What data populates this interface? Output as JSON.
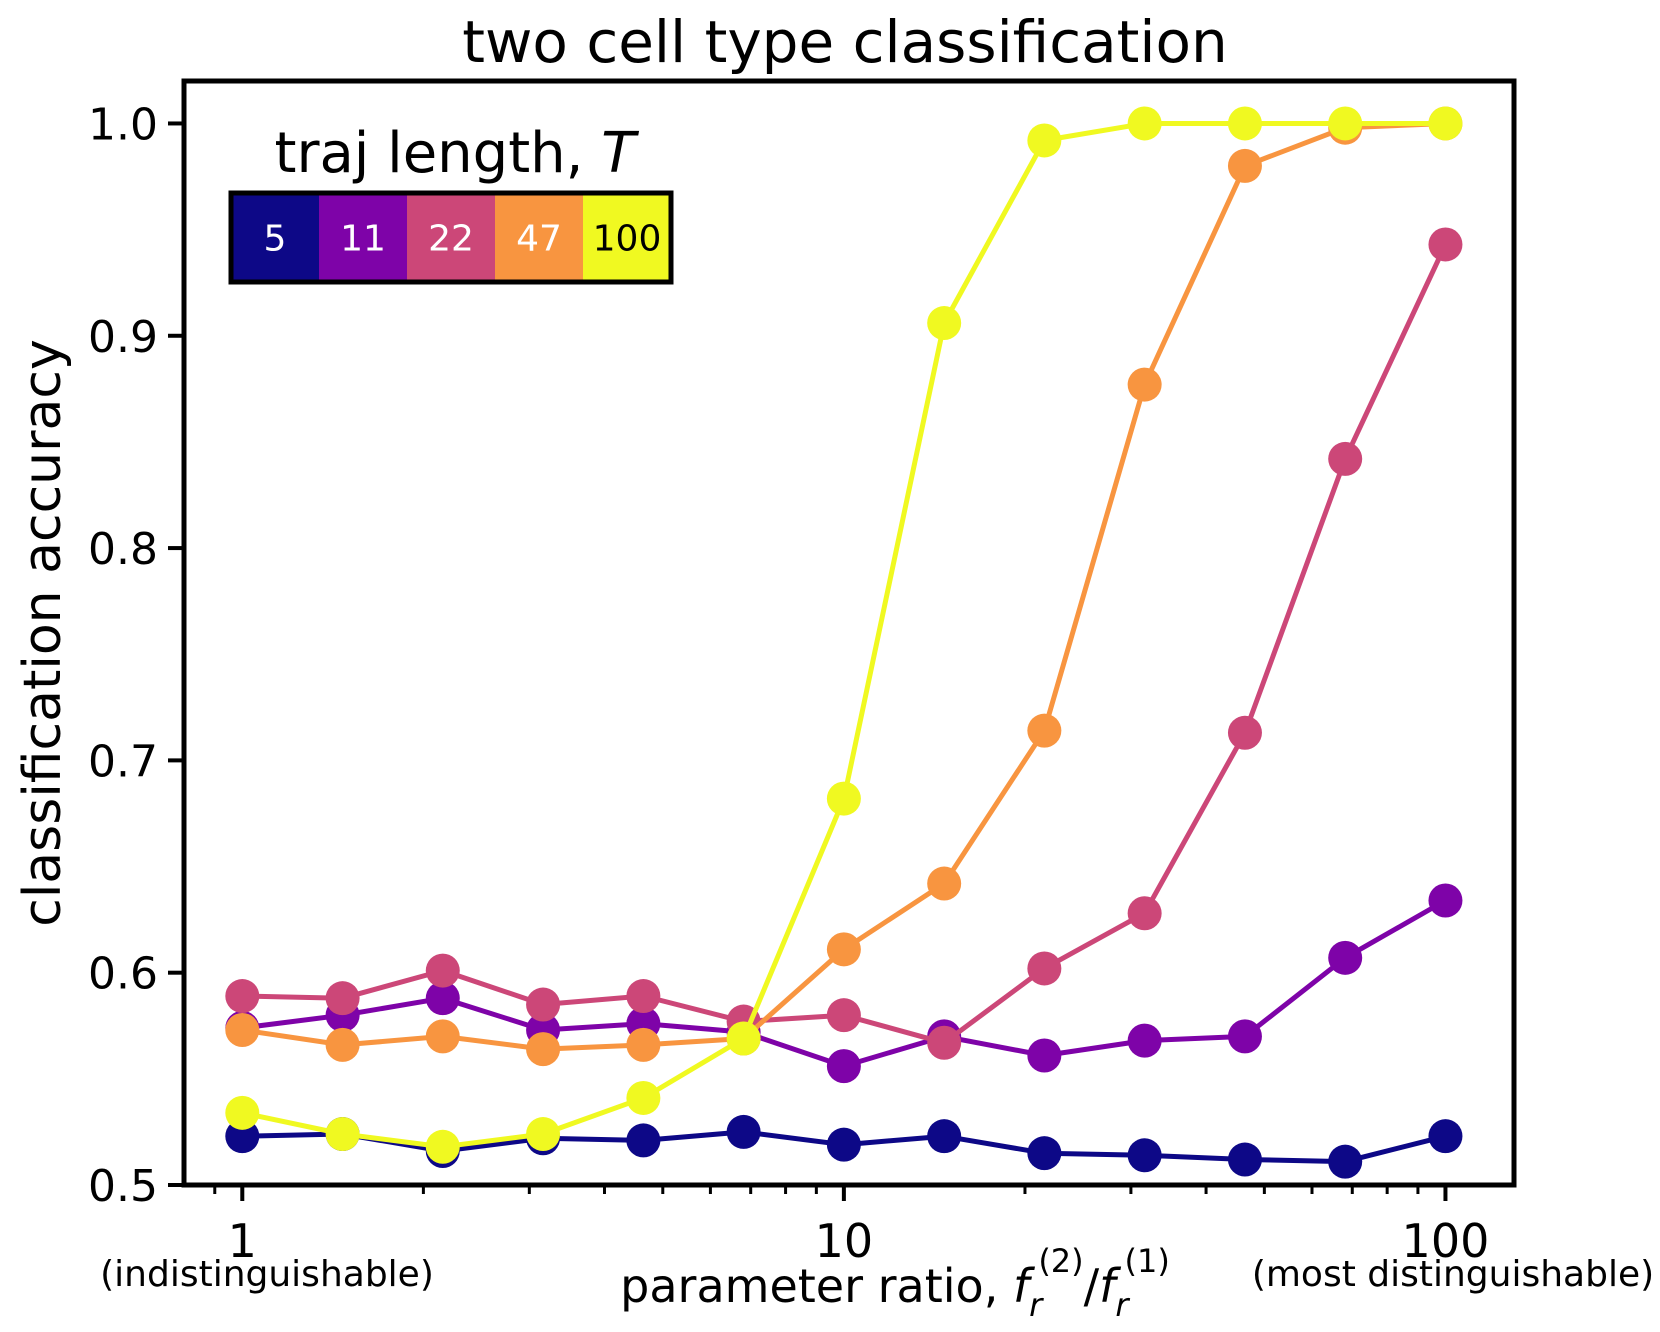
{
  "chart_data": {
    "type": "line",
    "title": "two cell type classification",
    "xlabel": "parameter ratio, ",
    "xlabel_math": {
      "base": "f",
      "sub": "r",
      "sup_num": "(2)",
      "sup_den": "(1)",
      "slash": "/"
    },
    "ylabel": "classification accuracy",
    "xscale": "log",
    "xlim": [
      0.8,
      130
    ],
    "ylim": [
      0.5,
      1.02
    ],
    "xticks": [
      {
        "value": 1,
        "label": "1"
      },
      {
        "value": 10,
        "label": "10"
      },
      {
        "value": 100,
        "label": "100"
      }
    ],
    "xtick_sublabels": {
      "left": "(indistinguishable)",
      "right": "(most distinguishable)"
    },
    "yticks": [
      {
        "value": 0.5,
        "label": "0.5"
      },
      {
        "value": 0.6,
        "label": "0.6"
      },
      {
        "value": 0.7,
        "label": "0.7"
      },
      {
        "value": 0.8,
        "label": "0.8"
      },
      {
        "value": 0.9,
        "label": "0.9"
      },
      {
        "value": 1.0,
        "label": "1.0"
      }
    ],
    "x": [
      1,
      1.468,
      2.154,
      3.162,
      4.642,
      6.813,
      10,
      14.68,
      21.54,
      31.62,
      46.42,
      68.13,
      100
    ],
    "legend": {
      "title": "traj length, ",
      "title_italic": "T",
      "placement": "top-left"
    },
    "series": [
      {
        "name": "5",
        "color": "#0d0887",
        "text_color": "#ffffff",
        "values": [
          0.523,
          0.524,
          0.516,
          0.522,
          0.521,
          0.525,
          0.519,
          0.523,
          0.515,
          0.514,
          0.512,
          0.511,
          0.523
        ]
      },
      {
        "name": "11",
        "color": "#7e03a8",
        "text_color": "#ffffff",
        "values": [
          0.574,
          0.58,
          0.588,
          0.573,
          0.576,
          0.572,
          0.556,
          0.57,
          0.561,
          0.568,
          0.57,
          0.607,
          0.634
        ]
      },
      {
        "name": "22",
        "color": "#cc4778",
        "text_color": "#ffffff",
        "values": [
          0.589,
          0.588,
          0.601,
          0.585,
          0.589,
          0.577,
          0.58,
          0.567,
          0.602,
          0.628,
          0.713,
          0.842,
          0.943
        ]
      },
      {
        "name": "47",
        "color": "#f89540",
        "text_color": "#ffffff",
        "values": [
          0.573,
          0.566,
          0.57,
          0.564,
          0.566,
          0.569,
          0.611,
          0.642,
          0.714,
          0.877,
          0.98,
          0.998,
          1.0
        ]
      },
      {
        "name": "100",
        "color": "#f0f921",
        "text_color": "#000000",
        "values": [
          0.534,
          0.524,
          0.518,
          0.524,
          0.541,
          0.569,
          0.682,
          0.906,
          0.992,
          1.0,
          1.0,
          1.0,
          1.0
        ]
      }
    ]
  }
}
